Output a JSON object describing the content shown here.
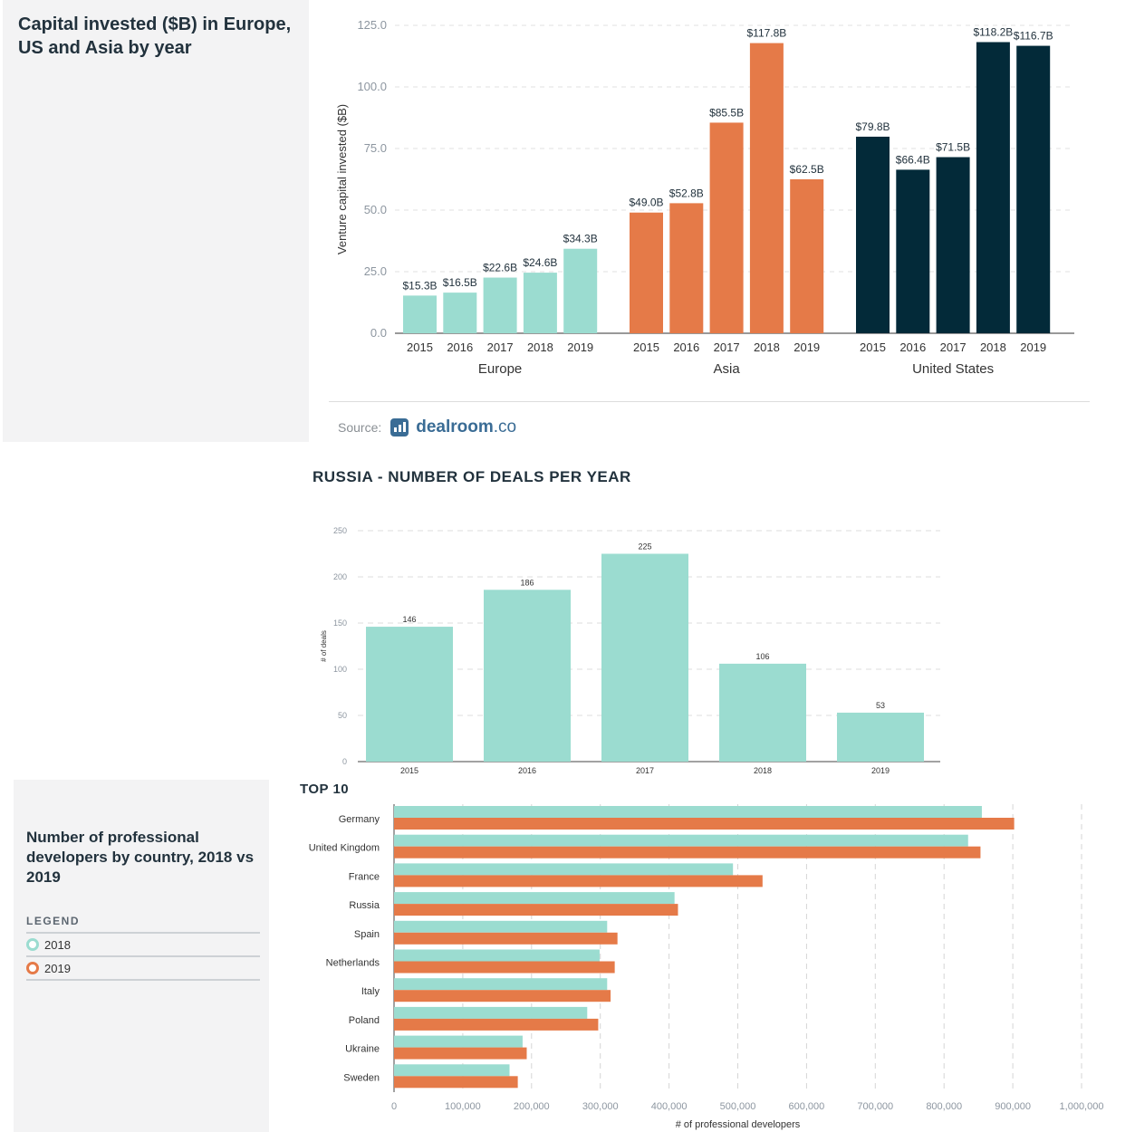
{
  "panel1": {
    "title": "Capital invested ($B) in Europe, US and Asia by year",
    "source_label": "Source:",
    "source_brand": "dealroom",
    "source_brand_suffix": ".co"
  },
  "panel2": {
    "title": "RUSSIA - NUMBER OF DEALS PER YEAR"
  },
  "panel3": {
    "title": "Number of professional developers by country, 2018 vs 2019",
    "subtitle": "TOP 10",
    "legend_heading": "LEGEND",
    "legend": [
      {
        "label": "2018",
        "color": "#9bdcd0"
      },
      {
        "label": "2019",
        "color": "#e57a48"
      }
    ]
  },
  "chart_data": [
    {
      "type": "bar",
      "title": "Capital invested ($B) in Europe, US and Asia by year",
      "ylabel": "Venture capital invested ($B)",
      "ylim": [
        0,
        125
      ],
      "yticks": [
        "0.0",
        "25.0",
        "50.0",
        "75.0",
        "100.0",
        "125.0"
      ],
      "grid": true,
      "groups": [
        {
          "name": "Europe",
          "color": "#9bdcd0",
          "categories": [
            "2015",
            "2016",
            "2017",
            "2018",
            "2019"
          ],
          "values": [
            15.3,
            16.5,
            22.6,
            24.6,
            34.3
          ],
          "labels": [
            "$15.3B",
            "$16.5B",
            "$22.6B",
            "$24.6B",
            "$34.3B"
          ]
        },
        {
          "name": "Asia",
          "color": "#e57a48",
          "categories": [
            "2015",
            "2016",
            "2017",
            "2018",
            "2019"
          ],
          "values": [
            49.0,
            52.8,
            85.5,
            117.8,
            62.5
          ],
          "labels": [
            "$49.0B",
            "$52.8B",
            "$85.5B",
            "$117.8B",
            "$62.5B"
          ]
        },
        {
          "name": "United States",
          "color": "#032a39",
          "categories": [
            "2015",
            "2016",
            "2017",
            "2018",
            "2019"
          ],
          "values": [
            79.8,
            66.4,
            71.5,
            118.2,
            116.7
          ],
          "labels": [
            "$79.8B",
            "$66.4B",
            "$71.5B",
            "$118.2B",
            "$116.7B"
          ]
        }
      ]
    },
    {
      "type": "bar",
      "title": "RUSSIA - NUMBER OF DEALS PER YEAR",
      "ylabel": "# of deals",
      "ylim": [
        0,
        250
      ],
      "yticks": [
        "0",
        "50",
        "100",
        "150",
        "200",
        "250"
      ],
      "grid": true,
      "color": "#9bdcd0",
      "categories": [
        "2015",
        "2016",
        "2017",
        "2018",
        "2019"
      ],
      "values": [
        146,
        186,
        225,
        106,
        53
      ]
    },
    {
      "type": "bar",
      "orientation": "horizontal",
      "title": "Number of professional developers by country, 2018 vs 2019",
      "xlabel": "# of professional developers",
      "xlim": [
        0,
        1000000
      ],
      "xticks": [
        "0",
        "100,000",
        "200,000",
        "300,000",
        "400,000",
        "500,000",
        "600,000",
        "700,000",
        "800,000",
        "900,000",
        "1,000,000"
      ],
      "grid": true,
      "categories": [
        "Germany",
        "United Kingdom",
        "France",
        "Russia",
        "Spain",
        "Netherlands",
        "Italy",
        "Poland",
        "Ukraine",
        "Sweden"
      ],
      "series": [
        {
          "name": "2018",
          "color": "#9bdcd0",
          "values": [
            855000,
            835000,
            493000,
            408000,
            310000,
            299000,
            310000,
            281000,
            187000,
            168000
          ]
        },
        {
          "name": "2019",
          "color": "#e57a48",
          "values": [
            902000,
            853000,
            536000,
            413000,
            325000,
            321000,
            315000,
            297000,
            193000,
            180000
          ]
        }
      ]
    }
  ]
}
